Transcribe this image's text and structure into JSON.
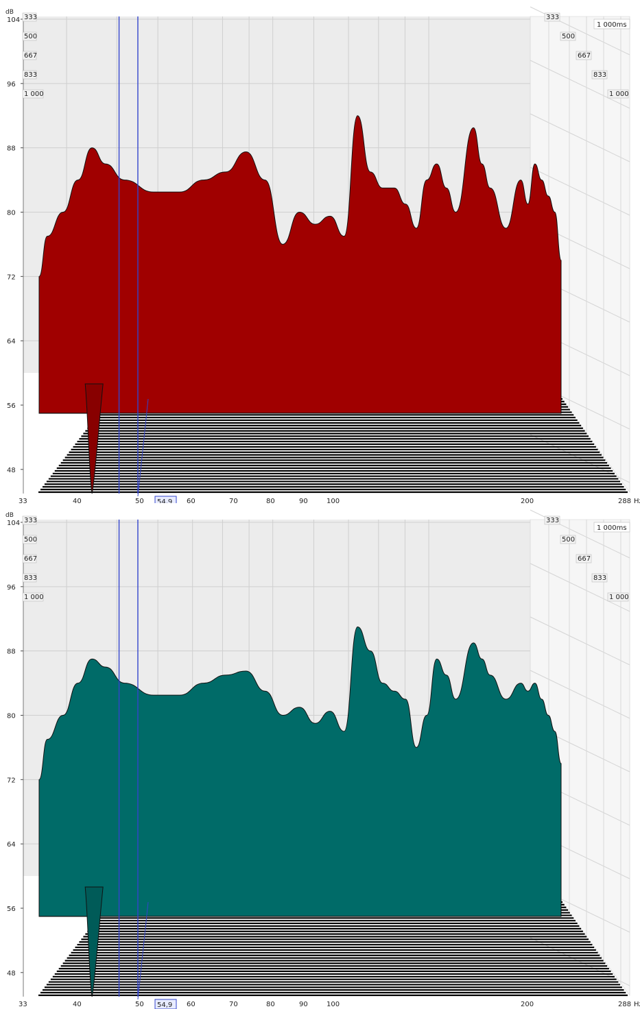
{
  "chart_data": [
    {
      "type": "waterfall",
      "ylabel": "dB",
      "xunit": "Hz",
      "yticks": [
        104,
        96,
        88,
        80,
        72,
        64,
        56,
        48
      ],
      "ylim": [
        45,
        104
      ],
      "xticks": [
        33,
        40,
        50,
        60,
        70,
        80,
        90,
        100,
        200,
        288
      ],
      "xtick_labels": [
        "33",
        "40",
        "50",
        "60",
        "70",
        "80",
        "90",
        "100",
        "200",
        "288"
      ],
      "xlim": [
        33,
        288
      ],
      "time_labels": [
        "333",
        "500",
        "667",
        "833",
        "1 000"
      ],
      "time_end_label": "1 000ms",
      "cursors_hz": [
        50.5,
        54.9
      ],
      "cursor_label": "54,9",
      "fill_color": "#a00000",
      "grid": true,
      "first_slice": {
        "x": [
          33,
          34,
          36,
          38,
          40,
          42,
          45,
          50,
          55,
          60,
          65,
          70,
          75,
          80,
          85,
          90,
          95,
          100,
          105,
          110,
          115,
          120,
          125,
          130,
          135,
          140,
          145,
          150,
          160,
          165,
          170,
          180,
          190,
          195,
          200,
          205,
          210,
          215,
          220
        ],
        "y": [
          72,
          77,
          80,
          84,
          88,
          86,
          84,
          82.5,
          82.5,
          84,
          85,
          87.5,
          84,
          76,
          80,
          78.5,
          79.5,
          77,
          92,
          85,
          83,
          83,
          81,
          78,
          84,
          86,
          83,
          80,
          90.5,
          86,
          83,
          78,
          84,
          81,
          86,
          84,
          82,
          80,
          74
        ]
      }
    },
    {
      "type": "waterfall",
      "ylabel": "dB",
      "xunit": "Hz",
      "yticks": [
        104,
        96,
        88,
        80,
        72,
        64,
        56,
        48
      ],
      "ylim": [
        45,
        104
      ],
      "xticks": [
        33,
        40,
        50,
        60,
        70,
        80,
        90,
        100,
        200,
        288
      ],
      "xtick_labels": [
        "33",
        "40",
        "50",
        "60",
        "70",
        "80",
        "90",
        "100",
        "200",
        "288"
      ],
      "xlim": [
        33,
        288
      ],
      "time_labels": [
        "333",
        "500",
        "667",
        "833",
        "1 000"
      ],
      "time_end_label": "1 000ms",
      "cursors_hz": [
        50.5,
        54.9
      ],
      "cursor_label": "54,9",
      "fill_color": "#006b68",
      "grid": true,
      "first_slice": {
        "x": [
          33,
          34,
          36,
          38,
          40,
          42,
          45,
          50,
          55,
          60,
          65,
          70,
          75,
          80,
          85,
          90,
          95,
          100,
          105,
          110,
          115,
          120,
          125,
          130,
          135,
          140,
          145,
          150,
          160,
          165,
          170,
          180,
          190,
          195,
          200,
          205,
          210,
          215,
          220
        ],
        "y": [
          72,
          77,
          80,
          84,
          87,
          86,
          84,
          82.5,
          82.5,
          84,
          85,
          85.5,
          83,
          80,
          81,
          79,
          80.5,
          78,
          91,
          88,
          84,
          83,
          82,
          76,
          80,
          87,
          85,
          82,
          89,
          87,
          85,
          82,
          84,
          83,
          84,
          82,
          80,
          78,
          74
        ]
      }
    }
  ]
}
